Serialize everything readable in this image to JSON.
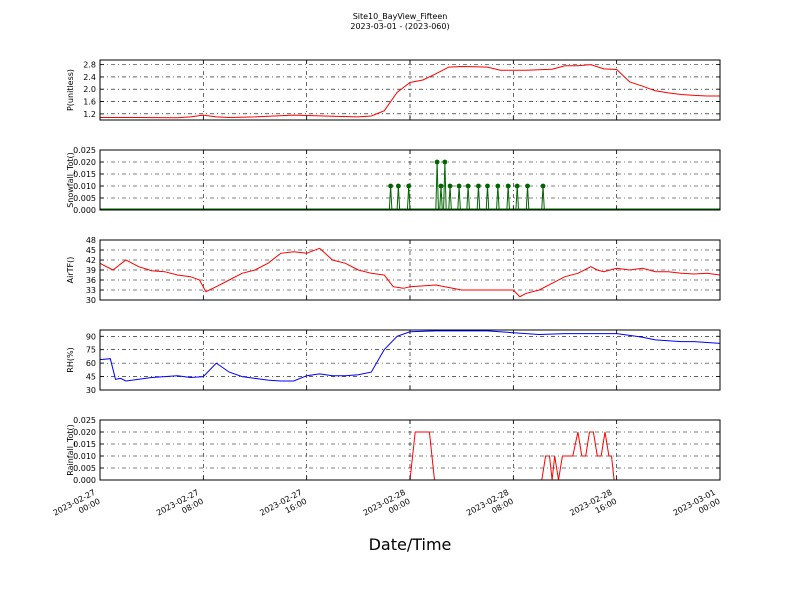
{
  "title": "Site10_BayView_Fifteen",
  "subtitle": "2023-03-01 - (2023-060)",
  "chart_data": {
    "type": "line",
    "xlabel": "Date/Time",
    "x_ticks": [
      {
        "line1": "2023-02-27",
        "line2": "00:00"
      },
      {
        "line1": "2023-02-27",
        "line2": "08:00"
      },
      {
        "line1": "2023-02-27",
        "line2": "16:00"
      },
      {
        "line1": "2023-02-28",
        "line2": "00:00"
      },
      {
        "line1": "2023-02-28",
        "line2": "08:00"
      },
      {
        "line1": "2023-02-28",
        "line2": "16:00"
      },
      {
        "line1": "2023-03-01",
        "line2": "00:00"
      }
    ],
    "x_range_hours": [
      0,
      48
    ],
    "grid": true,
    "panels": [
      {
        "ylabel": "P(unitless)",
        "ylim": [
          1.0,
          2.95
        ],
        "yticks": [
          "1.2",
          "1.6",
          "2.0",
          "2.4",
          "2.8"
        ],
        "ytick_values": [
          1.2,
          1.6,
          2.0,
          2.4,
          2.8
        ],
        "color": "#ff0000",
        "markers": false,
        "hours": [
          0,
          3,
          6,
          7,
          8,
          9,
          10,
          12,
          15,
          18,
          20,
          21,
          22,
          23,
          24,
          25,
          26,
          27,
          28,
          29,
          30,
          31,
          33,
          35,
          36,
          37,
          38,
          39,
          40,
          41,
          42,
          43,
          44,
          45,
          46,
          47,
          48
        ],
        "values": [
          1.08,
          1.08,
          1.07,
          1.1,
          1.16,
          1.1,
          1.08,
          1.1,
          1.16,
          1.12,
          1.1,
          1.13,
          1.3,
          1.9,
          2.22,
          2.3,
          2.5,
          2.72,
          2.74,
          2.73,
          2.72,
          2.62,
          2.62,
          2.65,
          2.76,
          2.76,
          2.8,
          2.66,
          2.64,
          2.24,
          2.1,
          1.95,
          1.88,
          1.83,
          1.8,
          1.78,
          1.78
        ]
      },
      {
        "ylabel": "Snowfall_Tot()",
        "ylim": [
          0,
          0.025
        ],
        "yticks": [
          "0.000",
          "0.005",
          "0.010",
          "0.015",
          "0.020",
          "0.025"
        ],
        "ytick_values": [
          0,
          0.005,
          0.01,
          0.015,
          0.02,
          0.025
        ],
        "color": "#006400",
        "markers": true,
        "spikes": [
          {
            "hour": 22.5,
            "value": 0.01
          },
          {
            "hour": 23.1,
            "value": 0.01
          },
          {
            "hour": 23.9,
            "value": 0.01
          },
          {
            "hour": 26.1,
            "value": 0.02
          },
          {
            "hour": 26.4,
            "value": 0.01
          },
          {
            "hour": 26.7,
            "value": 0.02
          },
          {
            "hour": 27.1,
            "value": 0.01
          },
          {
            "hour": 27.8,
            "value": 0.01
          },
          {
            "hour": 28.5,
            "value": 0.01
          },
          {
            "hour": 29.3,
            "value": 0.01
          },
          {
            "hour": 30.0,
            "value": 0.01
          },
          {
            "hour": 30.8,
            "value": 0.01
          },
          {
            "hour": 31.6,
            "value": 0.01
          },
          {
            "hour": 32.3,
            "value": 0.01
          },
          {
            "hour": 33.1,
            "value": 0.01
          },
          {
            "hour": 34.3,
            "value": 0.01
          }
        ]
      },
      {
        "ylabel": "AirTF()",
        "ylim": [
          30,
          48
        ],
        "yticks": [
          "30",
          "33",
          "36",
          "39",
          "42",
          "45",
          "48"
        ],
        "ytick_values": [
          30,
          33,
          36,
          39,
          42,
          45,
          48
        ],
        "color": "#ff0000",
        "markers": false,
        "hours": [
          0,
          1,
          2,
          3,
          4,
          5,
          6,
          7,
          7.7,
          8.2,
          9,
          10,
          11,
          12,
          13,
          14,
          15,
          16,
          17,
          18,
          19,
          20,
          21,
          22,
          22.7,
          23.5,
          24,
          26,
          28,
          30,
          32,
          32.5,
          33,
          34,
          35,
          36,
          37,
          38,
          38.5,
          39,
          40,
          41,
          42,
          43,
          44,
          45,
          46,
          47,
          48
        ],
        "values": [
          41,
          39,
          42,
          40,
          38.8,
          38.5,
          37.5,
          37,
          36,
          32.5,
          34,
          36,
          38,
          39,
          41,
          44,
          44.5,
          44,
          45.5,
          42,
          41,
          39,
          38,
          37.5,
          34,
          33.5,
          34,
          34.5,
          33,
          33,
          33,
          31,
          32,
          33,
          35,
          37,
          38,
          40,
          39,
          38.5,
          39.5,
          39,
          39.5,
          38.5,
          38.5,
          38,
          37.8,
          38,
          37.5
        ]
      },
      {
        "ylabel": "RH(%)",
        "ylim": [
          30,
          97
        ],
        "yticks": [
          "30",
          "45",
          "60",
          "75",
          "90"
        ],
        "ytick_values": [
          30,
          45,
          60,
          75,
          90
        ],
        "color": "#0000ff",
        "markers": false,
        "hours": [
          0,
          0.8,
          1.2,
          1.6,
          2,
          3,
          4,
          5,
          6,
          7,
          8,
          9,
          10,
          11,
          12,
          13,
          14,
          15,
          16,
          17,
          18,
          19,
          20,
          21,
          22,
          23,
          24,
          26,
          28,
          30,
          32,
          34,
          36,
          38,
          40,
          41,
          42,
          43,
          44,
          45,
          46,
          47,
          48
        ],
        "values": [
          64,
          65,
          42,
          43,
          40,
          42,
          44,
          45,
          46,
          44,
          45,
          60,
          50,
          45,
          43,
          41,
          40,
          40,
          46,
          48,
          46,
          46,
          47,
          50,
          75,
          90,
          95,
          96,
          96,
          96,
          94,
          92,
          93,
          93,
          93,
          91,
          89,
          86,
          85,
          84,
          84,
          83,
          82
        ]
      },
      {
        "ylabel": "Rainfall_Tot()",
        "ylim": [
          0,
          0.025
        ],
        "yticks": [
          "0.000",
          "0.005",
          "0.010",
          "0.015",
          "0.020",
          "0.025"
        ],
        "ytick_values": [
          0,
          0.005,
          0.01,
          0.015,
          0.02,
          0.025
        ],
        "color": "#ff0000",
        "markers": false,
        "hours": [
          0,
          24,
          24.4,
          25.5,
          25.9,
          34.2,
          34.5,
          34.8,
          35.0,
          35.2,
          35.5,
          35.8,
          36.2,
          36.6,
          37,
          37.3,
          37.6,
          37.9,
          38.2,
          38.5,
          38.8,
          39.1,
          39.4,
          39.6,
          39.8,
          40.1,
          48
        ],
        "values": [
          0,
          0,
          0.02,
          0.02,
          0,
          0,
          0.01,
          0.01,
          0,
          0.01,
          0,
          0.01,
          0.01,
          0.01,
          0.02,
          0.01,
          0.01,
          0.02,
          0.02,
          0.01,
          0.01,
          0.02,
          0.01,
          0.01,
          0,
          0,
          0
        ]
      }
    ]
  }
}
